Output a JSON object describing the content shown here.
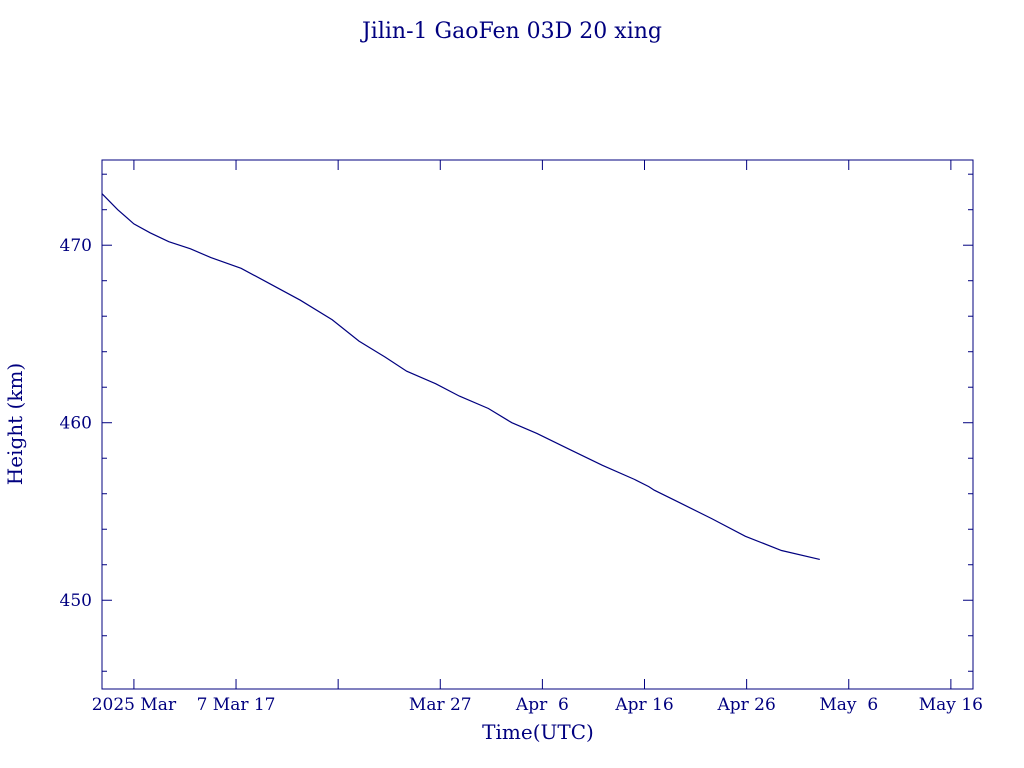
{
  "colors": {
    "ink": "#00007f",
    "background": "#ffffff"
  },
  "chart_data": {
    "type": "line",
    "title": "Jilin-1 GaoFen 03D 20 xing",
    "xlabel": "Time(UTC)",
    "ylabel": "Height (km)",
    "xlim": [
      "2025-02-21T21:00",
      "2025-05-18T04:00"
    ],
    "ylim": [
      445,
      474.8
    ],
    "x_ticks": [
      "2025-02-25",
      "2025-03-07",
      "2025-03-17",
      "2025-03-27",
      "2025-04-06",
      "2025-04-16",
      "2025-04-26",
      "2025-05-06",
      "2025-05-16"
    ],
    "x_tick_labels": [
      "2025 Mar",
      "7 Mar 17",
      "",
      "Mar 27",
      "Apr  6",
      "Apr 16",
      "Apr 26",
      "May  6",
      "May 16"
    ],
    "y_ticks": [
      450,
      460,
      470
    ],
    "y_tick_labels": [
      "450",
      "460",
      "470"
    ],
    "y_minor_step": 2,
    "grid": false,
    "series": [
      {
        "x": [
          "2025-02-21T21:00",
          "2025-02-23T10:00",
          "2025-02-25T00:00",
          "2025-02-26T14:00",
          "2025-02-28T10:00",
          "2025-03-02T13:00",
          "2025-03-04T13:00",
          "2025-03-07T12:00",
          "2025-03-10T10:00",
          "2025-03-13T07:00",
          "2025-03-16T10:00",
          "2025-03-19T01:00",
          "2025-03-21T14:00",
          "2025-03-23T17:00",
          "2025-03-26T13:00",
          "2025-03-28T21:00",
          "2025-03-31T17:00",
          "2025-04-03T00:00",
          "2025-04-05T11:00",
          "2025-04-08T16:00",
          "2025-04-11T21:00",
          "2025-04-15T01:00",
          "2025-04-16T10:00",
          "2025-04-16T23:00",
          "2025-04-19T10:00",
          "2025-04-22T14:00",
          "2025-04-25T21:00",
          "2025-04-29T10:00",
          "2025-05-03T04:00"
        ],
        "y": [
          472.9,
          472.0,
          471.2,
          470.7,
          470.2,
          469.8,
          469.3,
          468.7,
          467.8,
          466.9,
          465.8,
          464.6,
          463.7,
          462.9,
          462.2,
          461.5,
          460.8,
          460.0,
          459.4,
          458.5,
          457.6,
          456.8,
          456.4,
          456.2,
          455.5,
          454.6,
          453.6,
          452.8,
          452.3
        ]
      }
    ]
  }
}
